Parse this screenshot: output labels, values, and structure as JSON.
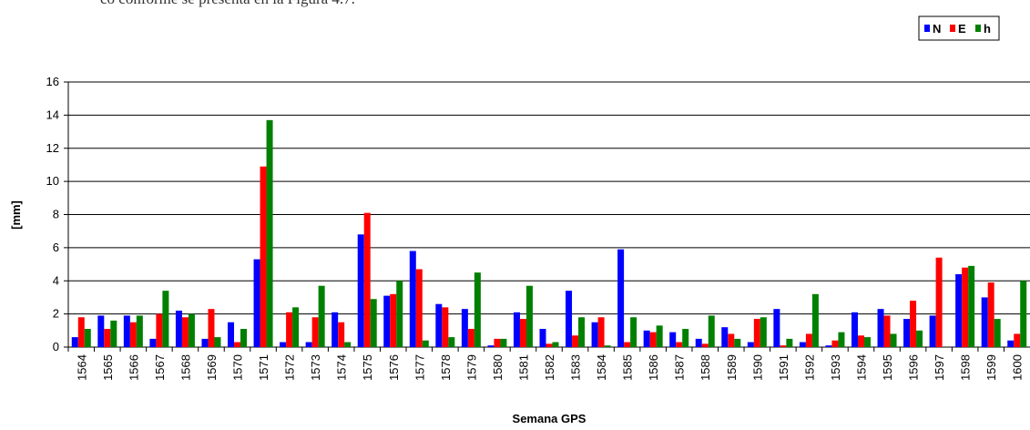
{
  "text": "co conforme se presenta en la Figura 4.7.",
  "chart_data": {
    "type": "bar",
    "xlabel": "Semana GPS",
    "ylabel": "[mm]",
    "categories": [
      "1564",
      "1565",
      "1566",
      "1567",
      "1568",
      "1569",
      "1570",
      "1571",
      "1572",
      "1573",
      "1574",
      "1575",
      "1576",
      "1577",
      "1578",
      "1579",
      "1580",
      "1581",
      "1582",
      "1583",
      "1584",
      "1585",
      "1586",
      "1587",
      "1588",
      "1589",
      "1590",
      "1591",
      "1592",
      "1593",
      "1594",
      "1595",
      "1596",
      "1597",
      "1598",
      "1599",
      "1600"
    ],
    "series": [
      {
        "name": "N",
        "color": "#0000ff",
        "values": [
          0.6,
          1.9,
          1.9,
          0.5,
          2.2,
          0.5,
          1.5,
          5.3,
          0.3,
          0.3,
          2.1,
          6.8,
          3.1,
          5.8,
          2.6,
          2.3,
          0.1,
          2.1,
          1.1,
          3.4,
          1.5,
          5.9,
          1.0,
          0.9,
          0.5,
          1.2,
          0.3,
          2.3,
          0.3,
          0.1,
          2.1,
          2.3,
          1.7,
          1.9,
          4.4,
          3.0,
          0.4
        ]
      },
      {
        "name": "E",
        "color": "#ff0000",
        "values": [
          1.8,
          1.1,
          1.5,
          2.0,
          1.8,
          2.3,
          0.3,
          10.9,
          2.1,
          1.8,
          1.5,
          8.1,
          3.2,
          4.7,
          2.4,
          1.1,
          0.5,
          1.7,
          0.2,
          0.7,
          1.8,
          0.3,
          0.9,
          0.3,
          0.2,
          0.8,
          1.7,
          0.1,
          0.8,
          0.4,
          0.7,
          1.9,
          2.8,
          5.4,
          4.8,
          3.9,
          0.8
        ]
      },
      {
        "name": "h",
        "color": "#008000",
        "values": [
          1.1,
          1.6,
          1.9,
          3.4,
          2.0,
          0.6,
          1.1,
          13.7,
          2.4,
          3.7,
          0.3,
          2.9,
          4.0,
          0.4,
          0.6,
          4.5,
          0.5,
          3.7,
          0.3,
          1.8,
          0.1,
          1.8,
          1.3,
          1.1,
          1.9,
          0.5,
          1.8,
          0.5,
          3.2,
          0.9,
          0.6,
          0.8,
          1.0,
          0.0,
          4.9,
          1.7,
          4.0
        ]
      }
    ],
    "ylim": [
      0,
      16
    ],
    "yticks": [
      0,
      2,
      4,
      6,
      8,
      10,
      12,
      14,
      16
    ],
    "grid": true,
    "legend": "top-right"
  }
}
